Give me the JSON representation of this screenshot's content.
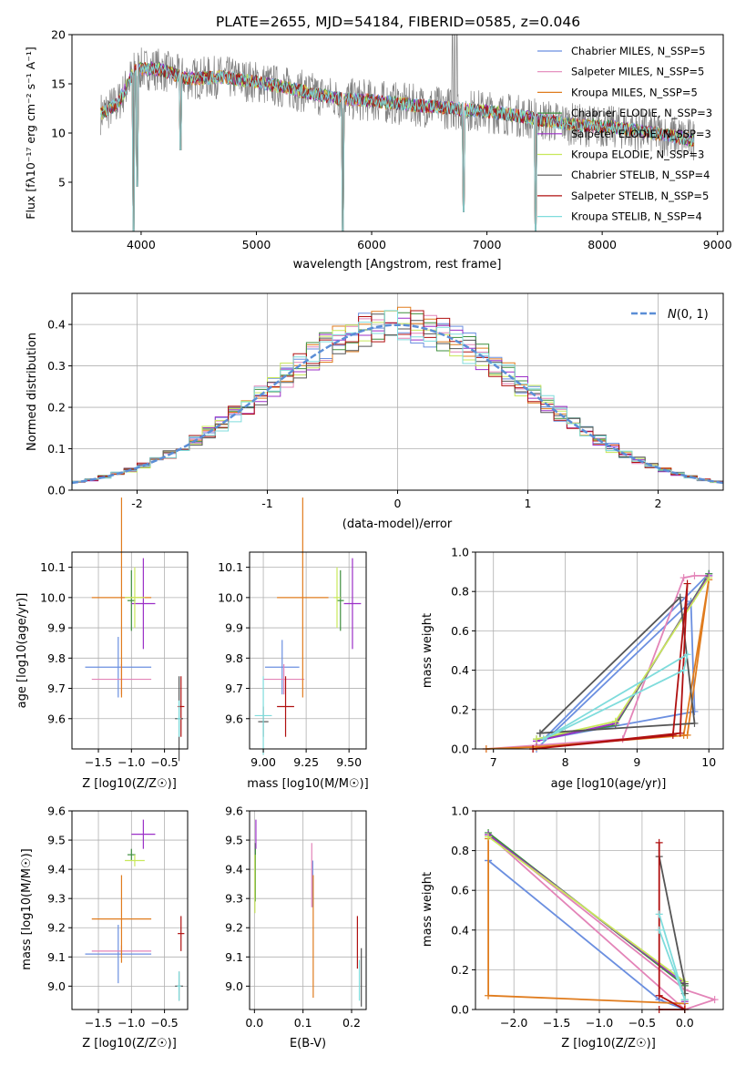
{
  "figure_title": "PLATE=2655, MJD=54184, FIBERID=0585, z=0.046",
  "colors": {
    "Chabrier MILES": "#6b8fe0",
    "Salpeter MILES": "#e384b8",
    "Kroupa MILES": "#e07c1e",
    "Chabrier ELODIE": "#3f8f3f",
    "Salpeter ELODIE": "#9b2fc7",
    "Kroupa ELODIE": "#c8e85a",
    "Chabrier STELIB": "#555555",
    "Salpeter STELIB": "#b01010",
    "Kroupa STELIB": "#7fdcdc",
    "data": "#808080",
    "normal": "#5b8ed6",
    "grid": "#b0b0b0"
  },
  "chart_data": [
    {
      "type": "line",
      "title": "PLATE=2655, MJD=54184, FIBERID=0585, z=0.046",
      "xlabel": "wavelength [Angstrom, rest frame]",
      "ylabel": "Flux [fλ10⁻¹⁷ erg cm⁻² s⁻¹ A⁻¹]",
      "xlim": [
        3400,
        9050
      ],
      "ylim": [
        0,
        20
      ],
      "xticks": [
        4000,
        5000,
        6000,
        7000,
        8000,
        9000
      ],
      "yticks": [
        5,
        10,
        15,
        20
      ],
      "grid": false,
      "legend_position": "top-right",
      "legend": [
        "Chabrier MILES, N_SSP=5",
        "Salpeter MILES, N_SSP=5",
        "Kroupa MILES, N_SSP=5",
        "Chabrier ELODIE, N_SSP=3",
        "Salpeter ELODIE, N_SSP=3",
        "Kroupa ELODIE, N_SSP=3",
        "Chabrier STELIB, N_SSP=4",
        "Salpeter STELIB, N_SSP=5",
        "Kroupa STELIB, N_SSP=4"
      ],
      "continuum": [
        [
          3650,
          12
        ],
        [
          3800,
          13
        ],
        [
          3950,
          16.5
        ],
        [
          4150,
          16.5
        ],
        [
          4400,
          15.5
        ],
        [
          4700,
          15.7
        ],
        [
          5000,
          15.2
        ],
        [
          5300,
          14.5
        ],
        [
          5700,
          13.5
        ],
        [
          6000,
          13.3
        ],
        [
          6300,
          12.9
        ],
        [
          6600,
          12.6
        ],
        [
          6900,
          12.3
        ],
        [
          7200,
          11.9
        ],
        [
          7500,
          11.3
        ],
        [
          7800,
          10.8
        ],
        [
          8100,
          10.6
        ],
        [
          8500,
          9.9
        ],
        [
          8800,
          9.3
        ]
      ],
      "absorption_dips": [
        [
          3934,
          0
        ],
        [
          3969,
          4.6
        ],
        [
          4340,
          8.3
        ],
        [
          5750,
          0
        ],
        [
          6800,
          2
        ],
        [
          7420,
          0
        ]
      ]
    },
    {
      "type": "line",
      "xlabel": "(data-model)/error",
      "ylabel": "Normed distribution",
      "xlim": [
        -2.5,
        2.5
      ],
      "ylim": [
        0,
        0.475
      ],
      "xticks": [
        -2,
        -1,
        0,
        1,
        2
      ],
      "yticks": [
        0.0,
        0.1,
        0.2,
        0.3,
        0.4
      ],
      "grid": true,
      "legend_position": "top-right",
      "legend": [
        "N(0, 1)"
      ],
      "normal_label_main": "N",
      "normal_label_rest": "(0, 1)"
    },
    {
      "type": "scatter",
      "xlabel": "Z [log10(Z/Z☉)]",
      "ylabel": "age  [log10(age/yr)]",
      "xlim": [
        -1.9,
        -0.15
      ],
      "ylim": [
        9.5,
        10.15
      ],
      "xticks": [
        -1.5,
        -1.0,
        -0.5
      ],
      "xtick_labels": [
        "−1.5",
        "−1.0",
        "−0.5"
      ],
      "yticks": [
        9.6,
        9.7,
        9.8,
        9.9,
        10.0,
        10.1
      ],
      "grid": true,
      "points": [
        {
          "model": "Chabrier MILES",
          "x": -1.2,
          "xerr": 0.5,
          "y": 9.77,
          "yerr": 0.1
        },
        {
          "model": "Salpeter MILES",
          "x": -1.15,
          "xerr": 0.45,
          "y": 9.73,
          "yerr": 0.05
        },
        {
          "model": "Kroupa MILES",
          "x": -1.15,
          "xerr": 0.45,
          "y": 10.0,
          "yerr": 0.33
        },
        {
          "model": "Chabrier ELODIE",
          "x": -1.0,
          "xerr": 0.06,
          "y": 9.99,
          "yerr": 0.1
        },
        {
          "model": "Salpeter ELODIE",
          "x": -0.82,
          "xerr": 0.18,
          "y": 9.98,
          "yerr": 0.15
        },
        {
          "model": "Kroupa ELODIE",
          "x": -0.95,
          "xerr": 0.15,
          "y": 10.0,
          "yerr": 0.1
        },
        {
          "model": "Chabrier STELIB",
          "x": -0.28,
          "xerr": 0.06,
          "y": 9.6,
          "yerr": 0.14
        },
        {
          "model": "Salpeter STELIB",
          "x": -0.25,
          "xerr": 0.05,
          "y": 9.64,
          "yerr": 0.1
        },
        {
          "model": "Kroupa STELIB",
          "x": -0.28,
          "xerr": 0.03,
          "y": 9.6,
          "yerr": 0.06
        }
      ]
    },
    {
      "type": "scatter",
      "xlabel": "mass [log10(M/M☉)]",
      "ylabel": "",
      "xlim": [
        8.92,
        9.6
      ],
      "ylim": [
        9.5,
        10.15
      ],
      "xticks": [
        9.0,
        9.25,
        9.5
      ],
      "xtick_labels": [
        "9.00",
        "9.25",
        "9.50"
      ],
      "yticks": [
        9.6,
        9.7,
        9.8,
        9.9,
        10.0,
        10.1
      ],
      "grid": true,
      "points": [
        {
          "model": "Chabrier MILES",
          "x": 9.11,
          "xerr": 0.1,
          "y": 9.77,
          "yerr": 0.09
        },
        {
          "model": "Salpeter MILES",
          "x": 9.12,
          "xerr": 0.12,
          "y": 9.73,
          "yerr": 0.05
        },
        {
          "model": "Kroupa MILES",
          "x": 9.23,
          "xerr": 0.15,
          "y": 10.0,
          "yerr": 0.33
        },
        {
          "model": "Chabrier ELODIE",
          "x": 9.45,
          "xerr": 0.02,
          "y": 9.99,
          "yerr": 0.1
        },
        {
          "model": "Salpeter ELODIE",
          "x": 9.52,
          "xerr": 0.05,
          "y": 9.98,
          "yerr": 0.15
        },
        {
          "model": "Kroupa ELODIE",
          "x": 9.43,
          "xerr": 0.02,
          "y": 10.0,
          "yerr": 0.1
        },
        {
          "model": "Chabrier STELIB",
          "x": 9.0,
          "xerr": 0.03,
          "y": 9.59,
          "yerr": 0.05
        },
        {
          "model": "Salpeter STELIB",
          "x": 9.13,
          "xerr": 0.05,
          "y": 9.64,
          "yerr": 0.1
        },
        {
          "model": "Kroupa STELIB",
          "x": 9.0,
          "xerr": 0.05,
          "y": 9.61,
          "yerr": 0.13
        }
      ]
    },
    {
      "type": "line",
      "xlabel": "age  [log10(age/yr)]",
      "ylabel": "mass weight",
      "xlim": [
        6.75,
        10.2
      ],
      "ylim": [
        0,
        1.0
      ],
      "xticks": [
        7,
        8,
        9,
        10
      ],
      "yticks": [
        0.0,
        0.2,
        0.4,
        0.6,
        0.8,
        1.0
      ],
      "grid": true,
      "series": [
        {
          "model": "Chabrier MILES",
          "x": [
            7.6,
            9.75,
            9.8,
            7.7,
            10.0
          ],
          "y": [
            0.0,
            0.75,
            0.19,
            0.05,
            0.89
          ]
        },
        {
          "model": "Salpeter MILES",
          "x": [
            6.9,
            8.8,
            9.65,
            9.8,
            10.0
          ],
          "y": [
            0.0,
            0.05,
            0.87,
            0.88,
            0.88
          ]
        },
        {
          "model": "Kroupa MILES",
          "x": [
            6.9,
            7.6,
            9.7,
            10.0,
            9.65
          ],
          "y": [
            0.0,
            0.01,
            0.07,
            0.86,
            0.07
          ]
        },
        {
          "model": "Chabrier ELODIE",
          "x": [
            7.6,
            8.7,
            10.0
          ],
          "y": [
            0.05,
            0.12,
            0.89
          ]
        },
        {
          "model": "Salpeter ELODIE",
          "x": [
            7.6,
            8.7,
            10.0
          ],
          "y": [
            0.04,
            0.13,
            0.88
          ]
        },
        {
          "model": "Kroupa ELODIE",
          "x": [
            7.6,
            8.7,
            10.0
          ],
          "y": [
            0.05,
            0.14,
            0.87
          ]
        },
        {
          "model": "Chabrier STELIB",
          "x": [
            7.65,
            9.6,
            9.8,
            7.65
          ],
          "y": [
            0.08,
            0.77,
            0.13,
            0.08
          ]
        },
        {
          "model": "Salpeter STELIB",
          "x": [
            7.55,
            9.5,
            9.7,
            9.6,
            7.55
          ],
          "y": [
            0.0,
            0.07,
            0.84,
            0.08,
            0.0
          ]
        },
        {
          "model": "Kroupa STELIB",
          "x": [
            7.7,
            9.7,
            9.65,
            7.7
          ],
          "y": [
            0.05,
            0.48,
            0.4,
            0.05
          ]
        }
      ]
    },
    {
      "type": "scatter",
      "xlabel": "Z [log10(Z/Z☉)]",
      "ylabel": "mass [log10(M/M☉)]",
      "xlim": [
        -1.9,
        -0.15
      ],
      "ylim": [
        8.92,
        9.6
      ],
      "xticks": [
        -1.5,
        -1.0,
        -0.5
      ],
      "xtick_labels": [
        "−1.5",
        "−1.0",
        "−0.5"
      ],
      "yticks": [
        9.0,
        9.1,
        9.2,
        9.3,
        9.4,
        9.5,
        9.6
      ],
      "grid": true,
      "points": [
        {
          "model": "Chabrier MILES",
          "x": -1.2,
          "xerr": 0.5,
          "y": 9.11,
          "yerr": 0.1
        },
        {
          "model": "Salpeter MILES",
          "x": -1.15,
          "xerr": 0.45,
          "y": 9.12,
          "yerr": 0.02
        },
        {
          "model": "Kroupa MILES",
          "x": -1.15,
          "xerr": 0.45,
          "y": 9.23,
          "yerr": 0.15
        },
        {
          "model": "Chabrier ELODIE",
          "x": -1.0,
          "xerr": 0.06,
          "y": 9.45,
          "yerr": 0.02
        },
        {
          "model": "Salpeter ELODIE",
          "x": -0.82,
          "xerr": 0.18,
          "y": 9.52,
          "yerr": 0.05
        },
        {
          "model": "Kroupa ELODIE",
          "x": -0.95,
          "xerr": 0.15,
          "y": 9.43,
          "yerr": 0.02
        },
        {
          "model": "Chabrier STELIB",
          "x": -0.28,
          "xerr": 0.06,
          "y": 9.0,
          "yerr": 0.05
        },
        {
          "model": "Salpeter STELIB",
          "x": -0.25,
          "xerr": 0.05,
          "y": 9.18,
          "yerr": 0.06
        },
        {
          "model": "Kroupa STELIB",
          "x": -0.28,
          "xerr": 0.03,
          "y": 9.0,
          "yerr": 0.05
        }
      ]
    },
    {
      "type": "scatter",
      "xlabel": "E(B-V)",
      "ylabel": "",
      "xlim": [
        -0.01,
        0.23
      ],
      "ylim": [
        8.92,
        9.6
      ],
      "xticks": [
        0.0,
        0.1,
        0.2
      ],
      "xtick_labels": [
        "0.0",
        "0.1",
        "0.2"
      ],
      "yticks": [
        9.0,
        9.1,
        9.2,
        9.3,
        9.4,
        9.5,
        9.6
      ],
      "grid": true,
      "points": [
        {
          "model": "Chabrier MILES",
          "x": 0.12,
          "xerr": 0.0,
          "y": 9.35,
          "yerr": 0.08
        },
        {
          "model": "Salpeter MILES",
          "x": 0.118,
          "xerr": 0.0,
          "y": 9.38,
          "yerr": 0.11
        },
        {
          "model": "Kroupa MILES",
          "x": 0.121,
          "xerr": 0.0,
          "y": 9.17,
          "yerr": 0.21
        },
        {
          "model": "Chabrier ELODIE",
          "x": 0.002,
          "xerr": 0.0,
          "y": 9.39,
          "yerr": 0.1
        },
        {
          "model": "Salpeter ELODIE",
          "x": 0.003,
          "xerr": 0.0,
          "y": 9.52,
          "yerr": 0.05
        },
        {
          "model": "Kroupa ELODIE",
          "x": 0.001,
          "xerr": 0.0,
          "y": 9.35,
          "yerr": 0.1
        },
        {
          "model": "Chabrier STELIB",
          "x": 0.22,
          "xerr": 0.0,
          "y": 9.03,
          "yerr": 0.1
        },
        {
          "model": "Salpeter STELIB",
          "x": 0.212,
          "xerr": 0.0,
          "y": 9.15,
          "yerr": 0.09
        },
        {
          "model": "Kroupa STELIB",
          "x": 0.216,
          "xerr": 0.0,
          "y": 9.02,
          "yerr": 0.07
        }
      ]
    },
    {
      "type": "line",
      "xlabel": "Z [log10(Z/Z☉)]",
      "ylabel": "mass weight",
      "xlim": [
        -2.45,
        0.45
      ],
      "ylim": [
        0,
        1.0
      ],
      "xticks": [
        -2.0,
        -1.5,
        -1.0,
        -0.5,
        0.0
      ],
      "xtick_labels": [
        "−2.0",
        "−1.5",
        "−1.0",
        "−0.5",
        "0.0"
      ],
      "yticks": [
        0.0,
        0.2,
        0.4,
        0.6,
        0.8,
        1.0
      ],
      "grid": true,
      "series": [
        {
          "model": "Chabrier MILES",
          "x": [
            -2.3,
            -0.3,
            0.0,
            -0.3,
            -2.3
          ],
          "y": [
            0.75,
            0.05,
            0.0,
            0.05,
            0.75
          ]
        },
        {
          "model": "Salpeter MILES",
          "x": [
            -2.3,
            0.0,
            0.35,
            0.0,
            -2.3
          ],
          "y": [
            0.88,
            0.1,
            0.05,
            0.0,
            0.88
          ]
        },
        {
          "model": "Kroupa MILES",
          "x": [
            -2.3,
            -2.3,
            0.0,
            0.0
          ],
          "y": [
            0.86,
            0.07,
            0.03,
            0.0
          ]
        },
        {
          "model": "Chabrier ELODIE",
          "x": [
            -2.3,
            0.0,
            0.0
          ],
          "y": [
            0.89,
            0.12,
            0.05
          ]
        },
        {
          "model": "Salpeter ELODIE",
          "x": [
            -2.3,
            0.0,
            0.0
          ],
          "y": [
            0.88,
            0.13,
            0.04
          ]
        },
        {
          "model": "Kroupa ELODIE",
          "x": [
            -2.3,
            0.0,
            0.0
          ],
          "y": [
            0.87,
            0.14,
            0.05
          ]
        },
        {
          "model": "Chabrier STELIB",
          "x": [
            -0.3,
            0.0,
            0.0
          ],
          "y": [
            0.77,
            0.13,
            0.08
          ]
        },
        {
          "model": "Salpeter STELIB",
          "x": [
            -0.3,
            -0.3,
            0.0,
            -0.3
          ],
          "y": [
            0.84,
            0.07,
            0.0,
            0.0
          ]
        },
        {
          "model": "Kroupa STELIB",
          "x": [
            -0.3,
            0.0,
            -0.3
          ],
          "y": [
            0.48,
            0.05,
            0.4
          ]
        }
      ]
    }
  ]
}
